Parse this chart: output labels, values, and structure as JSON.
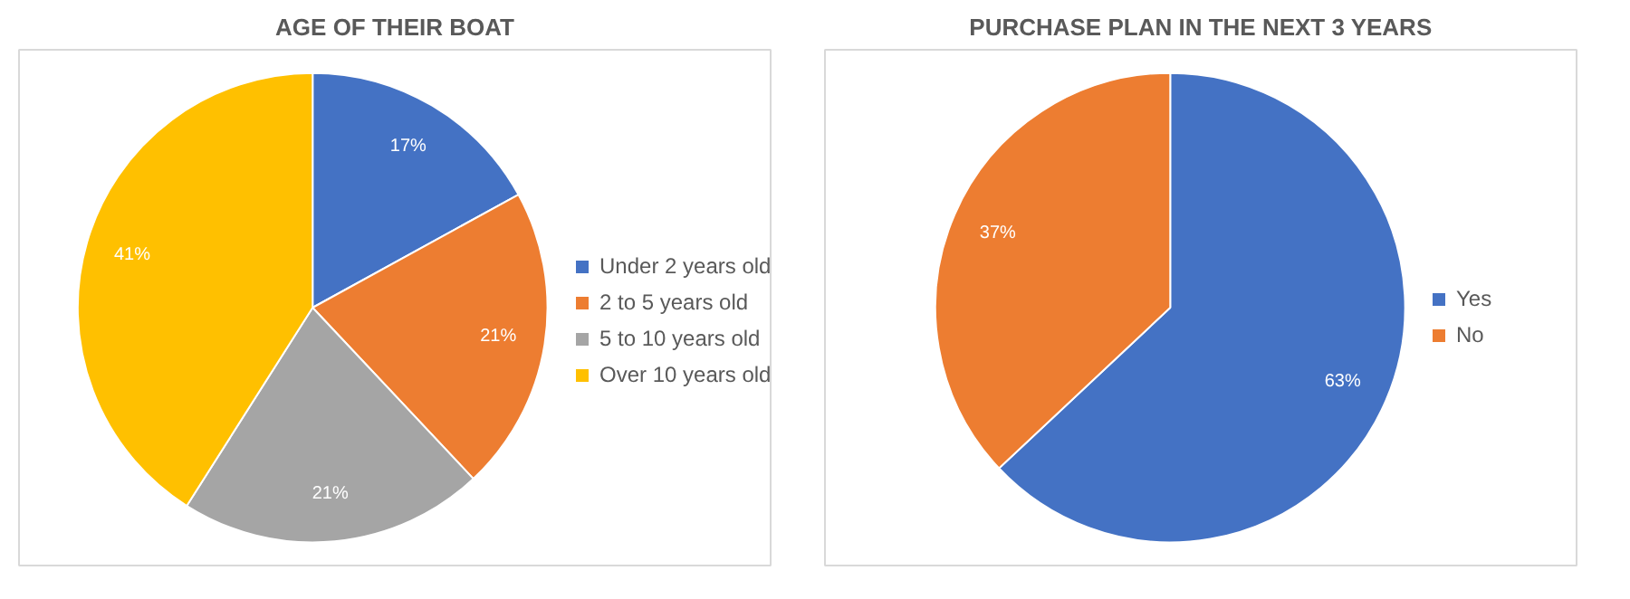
{
  "chart_data": [
    {
      "type": "pie",
      "title": "AGE OF THEIR BOAT",
      "categories": [
        "Under 2 years old",
        "2 to 5 years old",
        "5 to 10 years old",
        "Over 10 years old"
      ],
      "values": [
        17,
        21,
        21,
        41
      ],
      "colors": [
        "#4472c4",
        "#ed7d31",
        "#a5a5a5",
        "#ffc000"
      ],
      "value_labels": [
        "17%",
        "21%",
        "21%",
        "41%"
      ],
      "legend": "right"
    },
    {
      "type": "pie",
      "title": "PURCHASE PLAN IN THE NEXT 3 YEARS",
      "categories": [
        "Yes",
        "No"
      ],
      "values": [
        63,
        37
      ],
      "colors": [
        "#4472c4",
        "#ed7d31"
      ],
      "value_labels": [
        "63%",
        "37%"
      ],
      "legend": "right"
    }
  ]
}
